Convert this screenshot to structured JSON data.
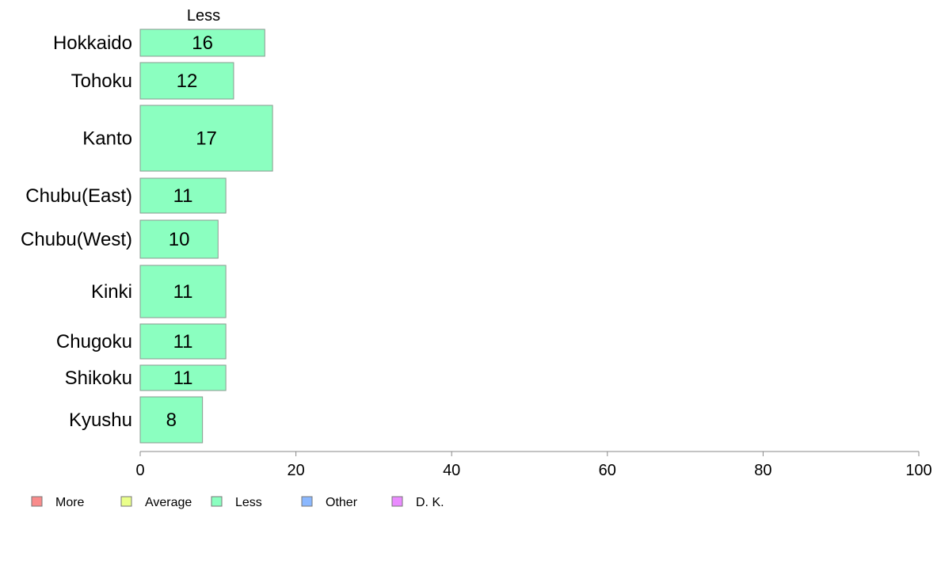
{
  "chart_data": {
    "type": "bar",
    "orientation": "horizontal",
    "stacked": true,
    "column_label": "Less",
    "categories": [
      "Hokkaido",
      "Tohoku",
      "Kanto",
      "Chubu(East)",
      "Chubu(West)",
      "Kinki",
      "Chugoku",
      "Shikoku",
      "Kyushu"
    ],
    "series": [
      {
        "name": "Less",
        "values": [
          16,
          12,
          17,
          11,
          10,
          11,
          11,
          11,
          8
        ]
      }
    ],
    "xlim": [
      0,
      100
    ],
    "xticks": [
      0,
      20,
      40,
      60,
      80,
      100
    ],
    "grid": false,
    "legend": {
      "placement": "bottom-left",
      "entries": [
        {
          "name": "More",
          "color": "#f98b8b"
        },
        {
          "name": "Average",
          "color": "#eaff8b"
        },
        {
          "name": "Less",
          "color": "#8bffc0"
        },
        {
          "name": "Other",
          "color": "#8bb8ff"
        },
        {
          "name": "D. K.",
          "color": "#ea8bff"
        }
      ]
    },
    "bar_color": "#8bffc0",
    "bar_stroke": "#8a9a8f"
  }
}
